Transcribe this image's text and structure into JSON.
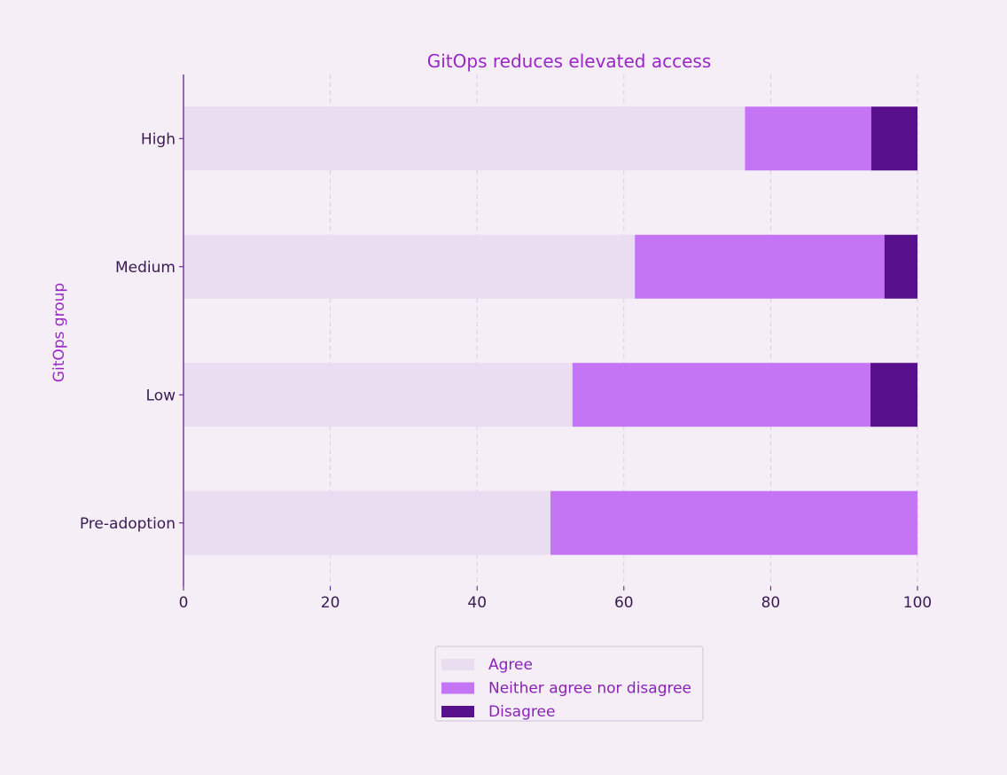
{
  "chart_data": {
    "type": "bar",
    "orientation": "horizontal",
    "stacked": true,
    "title": "GitOps reduces elevated access",
    "xlabel": "",
    "ylabel": "GitOps group",
    "xlim": [
      0,
      100
    ],
    "xticks": [
      0,
      20,
      40,
      60,
      80,
      100
    ],
    "grid": true,
    "legend_position": "bottom-center",
    "categories": [
      "High",
      "Medium",
      "Low",
      "Pre-adoption"
    ],
    "series": [
      {
        "name": "Agree",
        "color": "#eadcf1",
        "values": [
          76.5,
          61.5,
          53,
          50
        ]
      },
      {
        "name": "Neither agree nor disagree",
        "color": "#c574f6",
        "values": [
          17.2,
          34,
          40.6,
          50
        ]
      },
      {
        "name": "Disagree",
        "color": "#580f8b",
        "values": [
          6.3,
          4.5,
          6.4,
          0
        ]
      }
    ]
  },
  "colors": {
    "background": "#f5eef7",
    "title": "#9b26c6",
    "axis": "#5a0f86",
    "tick_text": "#3a1a52",
    "grid": "#d9c8e4",
    "legend_text": "#8a22b8",
    "legend_border": "#d0c4d8"
  }
}
